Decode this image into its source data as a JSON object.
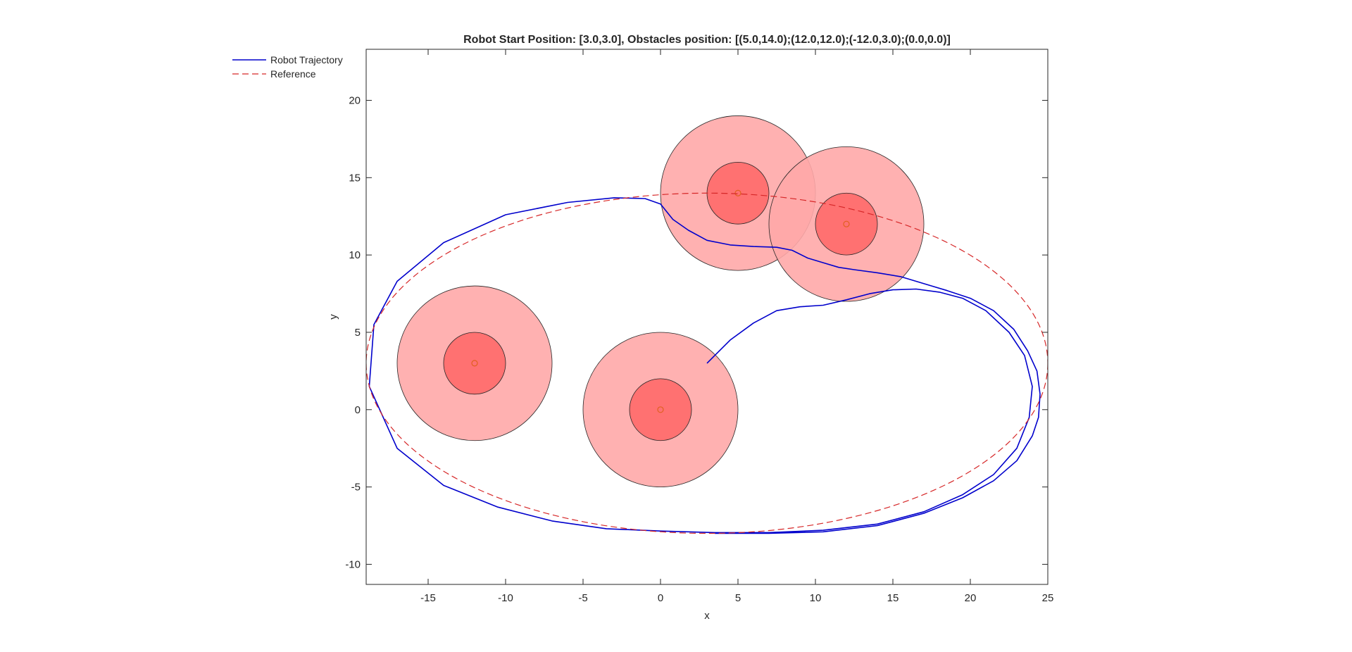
{
  "chart_data": {
    "type": "line",
    "title": "Robot Start Position: [3.0,3.0], Obstacles position: [(5.0,14.0);(12.0,12.0);(-12.0,3.0);(0.0,0.0)]",
    "xlabel": "x",
    "ylabel": "y",
    "xlim": [
      -19,
      25
    ],
    "ylim": [
      -11.3,
      23.3
    ],
    "xticks": [
      -15,
      -10,
      -5,
      0,
      5,
      10,
      15,
      20,
      25
    ],
    "yticks": [
      -10,
      -5,
      0,
      5,
      10,
      15,
      20
    ],
    "grid": false,
    "legend_position": "top-left, outside plot area",
    "series": [
      {
        "name": "Robot Trajectory",
        "color": "#0000CC",
        "line_style": "solid",
        "x": [
          3.0,
          4.5,
          6.0,
          7.5,
          9.0,
          10.5,
          12.0,
          13.5,
          15.0,
          16.5,
          18.0,
          19.5,
          21.0,
          22.5,
          23.5,
          24.0,
          23.8,
          23.0,
          21.5,
          19.5,
          17.0,
          14.0,
          10.5,
          7.0,
          3.5,
          0.0,
          -3.5,
          -7.0,
          -10.5,
          -14.0,
          -17.0,
          -18.8,
          -18.5,
          -17.0,
          -14.0,
          -10.0,
          -6.0,
          -3.0,
          -1.0,
          0.0,
          0.8,
          1.8,
          3.0,
          4.5,
          6.0,
          7.5,
          8.5,
          9.5,
          10.5,
          11.5,
          12.5,
          14.0,
          15.5,
          16.5,
          17.5,
          18.5,
          20.0,
          21.5,
          22.8,
          23.7,
          24.3,
          24.5,
          24.4,
          24.0,
          23.0,
          21.5,
          19.5,
          17.0,
          14.0,
          10.5,
          7.0,
          3.5
        ],
        "y": [
          3.0,
          4.5,
          5.6,
          6.4,
          6.65,
          6.75,
          7.1,
          7.5,
          7.75,
          7.8,
          7.6,
          7.2,
          6.4,
          5.0,
          3.5,
          1.5,
          -0.5,
          -2.5,
          -4.2,
          -5.5,
          -6.6,
          -7.4,
          -7.8,
          -7.95,
          -7.95,
          -7.85,
          -7.7,
          -7.2,
          -6.3,
          -4.9,
          -2.5,
          1.5,
          5.5,
          8.3,
          10.8,
          12.6,
          13.4,
          13.7,
          13.65,
          13.3,
          12.3,
          11.6,
          10.95,
          10.65,
          10.55,
          10.5,
          10.3,
          9.8,
          9.5,
          9.2,
          9.05,
          8.85,
          8.6,
          8.3,
          8.0,
          7.7,
          7.2,
          6.4,
          5.2,
          3.8,
          2.5,
          1.0,
          -0.5,
          -1.7,
          -3.3,
          -4.6,
          -5.7,
          -6.7,
          -7.5,
          -7.9,
          -8.0,
          -8.0
        ]
      },
      {
        "name": "Reference",
        "color": "#D62728",
        "line_style": "dashed",
        "ellipse_center": [
          3.0,
          3.0
        ],
        "ellipse_semi_axes": [
          22.0,
          11.0
        ]
      }
    ],
    "obstacles": [
      {
        "x": 5.0,
        "y": 14.0,
        "inner_radius": 2.0,
        "outer_radius": 5.0
      },
      {
        "x": 12.0,
        "y": 12.0,
        "inner_radius": 2.0,
        "outer_radius": 5.0
      },
      {
        "x": -12.0,
        "y": 3.0,
        "inner_radius": 2.0,
        "outer_radius": 5.0
      },
      {
        "x": 0.0,
        "y": 0.0,
        "inner_radius": 2.0,
        "outer_radius": 5.0
      }
    ],
    "obstacle_outer_color": "#FFA8A8",
    "obstacle_inner_color": "#FF6666"
  }
}
